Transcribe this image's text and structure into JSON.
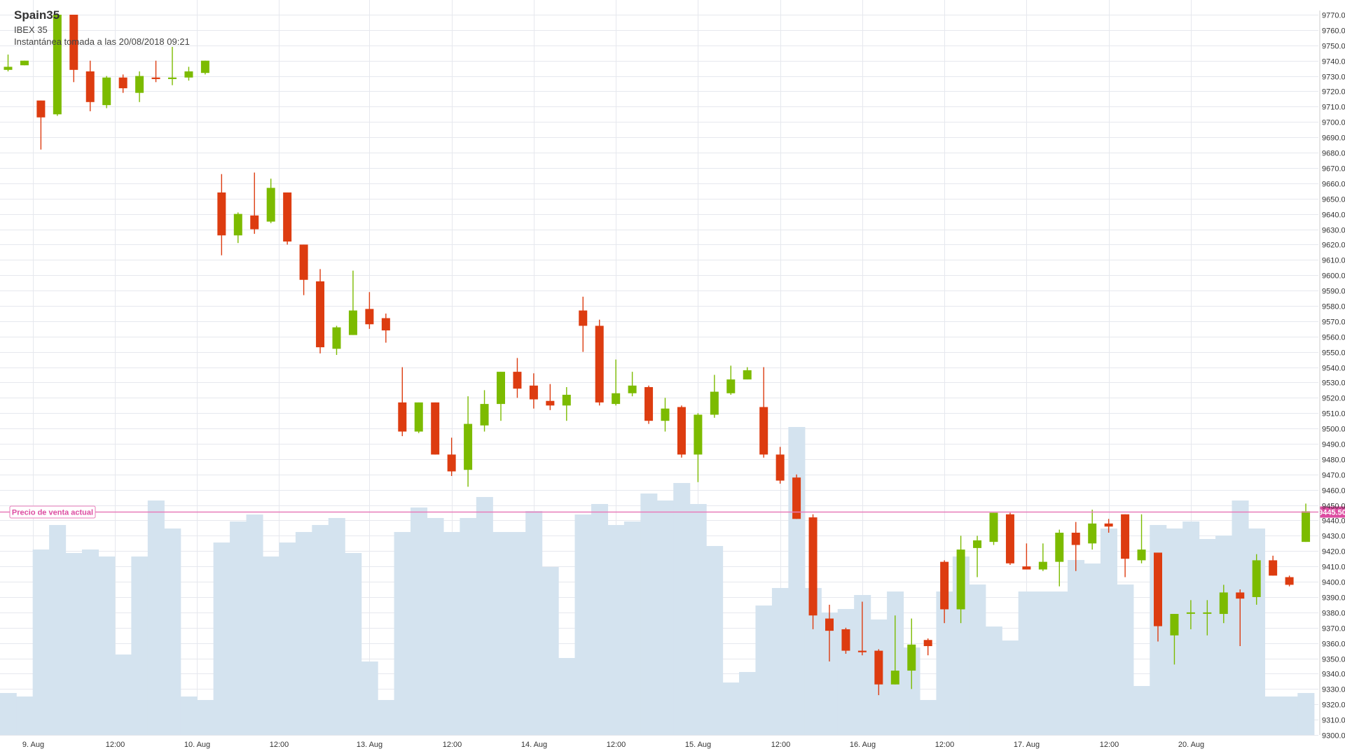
{
  "header": {
    "title": "Spain35",
    "subtitle": "IBEX 35",
    "snapshot": "Instantánea tomada a las 20/08/2018 09:21"
  },
  "colors": {
    "up": "#7cbb00",
    "down": "#dd3c10",
    "volume": "#d4e3ef",
    "grid": "#e6e8ee",
    "price_line": "#e87bb9",
    "price_badge": "#dd4ca1"
  },
  "price_line": {
    "label": "Precio de venta actual",
    "value": 9445.5,
    "value_label": "9445.50"
  },
  "chart_data": {
    "type": "candlestick",
    "x_labels": [
      {
        "label": "9. Aug",
        "index": 1.5
      },
      {
        "label": "12:00",
        "index": 6.5
      },
      {
        "label": "10. Aug",
        "index": 11.5
      },
      {
        "label": "12:00",
        "index": 16.5
      },
      {
        "label": "13. Aug",
        "index": 22.0
      },
      {
        "label": "12:00",
        "index": 27.0
      },
      {
        "label": "14. Aug",
        "index": 32.0
      },
      {
        "label": "12:00",
        "index": 37.0
      },
      {
        "label": "15. Aug",
        "index": 42.0
      },
      {
        "label": "12:00",
        "index": 47.0
      },
      {
        "label": "16. Aug",
        "index": 52.0
      },
      {
        "label": "12:00",
        "index": 57.0
      },
      {
        "label": "17. Aug",
        "index": 62.0
      },
      {
        "label": "12:00",
        "index": 67.0
      },
      {
        "label": "20. Aug",
        "index": 72.0
      }
    ],
    "y_axis": {
      "min": 9300,
      "max": 9770,
      "step": 10,
      "decimals": 2
    },
    "volume_range": {
      "min": 0,
      "max": 1
    },
    "candles": [
      {
        "o": 9734,
        "h": 9744,
        "l": 9733,
        "c": 9736,
        "v": 0.12
      },
      {
        "o": 9737,
        "h": 9740,
        "l": 9737,
        "c": 9740,
        "v": 0.11
      },
      {
        "o": 9714,
        "h": 9714,
        "l": 9682,
        "c": 9703,
        "v": 0.53
      },
      {
        "o": 9705,
        "h": 9770,
        "l": 9704,
        "c": 9770,
        "v": 0.6
      },
      {
        "o": 9770,
        "h": 9770,
        "l": 9726,
        "c": 9734,
        "v": 0.52
      },
      {
        "o": 9733,
        "h": 9740,
        "l": 9707,
        "c": 9713,
        "v": 0.53
      },
      {
        "o": 9711,
        "h": 9730,
        "l": 9709,
        "c": 9729,
        "v": 0.51
      },
      {
        "o": 9729,
        "h": 9731,
        "l": 9719,
        "c": 9722,
        "v": 0.23
      },
      {
        "o": 9719,
        "h": 9733,
        "l": 9713,
        "c": 9730,
        "v": 0.51
      },
      {
        "o": 9729,
        "h": 9740,
        "l": 9726,
        "c": 9728,
        "v": 0.67
      },
      {
        "o": 9728,
        "h": 9749,
        "l": 9724,
        "c": 9729,
        "v": 0.59
      },
      {
        "o": 9729,
        "h": 9736,
        "l": 9727,
        "c": 9733,
        "v": 0.11
      },
      {
        "o": 9732,
        "h": 9740,
        "l": 9731,
        "c": 9740,
        "v": 0.1
      },
      {
        "o": 9654,
        "h": 9666,
        "l": 9613,
        "c": 9626,
        "v": 0.55
      },
      {
        "o": 9626,
        "h": 9641,
        "l": 9621,
        "c": 9640,
        "v": 0.61
      },
      {
        "o": 9639,
        "h": 9667,
        "l": 9627,
        "c": 9630,
        "v": 0.63
      },
      {
        "o": 9635,
        "h": 9663,
        "l": 9634,
        "c": 9657,
        "v": 0.51
      },
      {
        "o": 9654,
        "h": 9654,
        "l": 9620,
        "c": 9622,
        "v": 0.55
      },
      {
        "o": 9620,
        "h": 9620,
        "l": 9587,
        "c": 9597,
        "v": 0.58
      },
      {
        "o": 9596,
        "h": 9604,
        "l": 9549,
        "c": 9553,
        "v": 0.6
      },
      {
        "o": 9552,
        "h": 9567,
        "l": 9548,
        "c": 9566,
        "v": 0.62
      },
      {
        "o": 9561,
        "h": 9603,
        "l": 9561,
        "c": 9577,
        "v": 0.52
      },
      {
        "o": 9578,
        "h": 9589,
        "l": 9565,
        "c": 9568,
        "v": 0.21
      },
      {
        "o": 9572,
        "h": 9575,
        "l": 9556,
        "c": 9564,
        "v": 0.1
      },
      {
        "o": 9517,
        "h": 9540,
        "l": 9495,
        "c": 9498,
        "v": 0.58
      },
      {
        "o": 9498,
        "h": 9517,
        "l": 9497,
        "c": 9517,
        "v": 0.65
      },
      {
        "o": 9517,
        "h": 9517,
        "l": 9483,
        "c": 9483,
        "v": 0.62
      },
      {
        "o": 9483,
        "h": 9494,
        "l": 9469,
        "c": 9472,
        "v": 0.58
      },
      {
        "o": 9473,
        "h": 9521,
        "l": 9462,
        "c": 9503,
        "v": 0.62
      },
      {
        "o": 9502,
        "h": 9525,
        "l": 9498,
        "c": 9516,
        "v": 0.68
      },
      {
        "o": 9516,
        "h": 9537,
        "l": 9505,
        "c": 9537,
        "v": 0.58
      },
      {
        "o": 9537,
        "h": 9546,
        "l": 9520,
        "c": 9526,
        "v": 0.58
      },
      {
        "o": 9528,
        "h": 9536,
        "l": 9513,
        "c": 9519,
        "v": 0.64
      },
      {
        "o": 9518,
        "h": 9529,
        "l": 9512,
        "c": 9515,
        "v": 0.48
      },
      {
        "o": 9515,
        "h": 9527,
        "l": 9505,
        "c": 9522,
        "v": 0.22
      },
      {
        "o": 9577,
        "h": 9586,
        "l": 9550,
        "c": 9567,
        "v": 0.63
      },
      {
        "o": 9567,
        "h": 9571,
        "l": 9515,
        "c": 9517,
        "v": 0.66
      },
      {
        "o": 9516,
        "h": 9545,
        "l": 9515,
        "c": 9523,
        "v": 0.6
      },
      {
        "o": 9523,
        "h": 9537,
        "l": 9521,
        "c": 9528,
        "v": 0.61
      },
      {
        "o": 9527,
        "h": 9528,
        "l": 9503,
        "c": 9505,
        "v": 0.69
      },
      {
        "o": 9505,
        "h": 9520,
        "l": 9498,
        "c": 9513,
        "v": 0.67
      },
      {
        "o": 9514,
        "h": 9515,
        "l": 9481,
        "c": 9483,
        "v": 0.72
      },
      {
        "o": 9483,
        "h": 9510,
        "l": 9465,
        "c": 9509,
        "v": 0.66
      },
      {
        "o": 9509,
        "h": 9535,
        "l": 9507,
        "c": 9524,
        "v": 0.54
      },
      {
        "o": 9523,
        "h": 9541,
        "l": 9522,
        "c": 9532,
        "v": 0.15
      },
      {
        "o": 9532,
        "h": 9540,
        "l": 9532,
        "c": 9538,
        "v": 0.18
      },
      {
        "o": 9514,
        "h": 9540,
        "l": 9481,
        "c": 9483,
        "v": 0.37
      },
      {
        "o": 9483,
        "h": 9488,
        "l": 9464,
        "c": 9466,
        "v": 0.42
      },
      {
        "o": 9468,
        "h": 9470,
        "l": 9441,
        "c": 9441,
        "v": 0.88
      },
      {
        "o": 9442,
        "h": 9444,
        "l": 9369,
        "c": 9378,
        "v": 0.42
      },
      {
        "o": 9376,
        "h": 9385,
        "l": 9348,
        "c": 9368,
        "v": 0.35
      },
      {
        "o": 9369,
        "h": 9370,
        "l": 9353,
        "c": 9355,
        "v": 0.36
      },
      {
        "o": 9355,
        "h": 9387,
        "l": 9352,
        "c": 9354,
        "v": 0.4
      },
      {
        "o": 9355,
        "h": 9356,
        "l": 9326,
        "c": 9333,
        "v": 0.33
      },
      {
        "o": 9333,
        "h": 9378,
        "l": 9333,
        "c": 9342,
        "v": 0.41
      },
      {
        "o": 9342,
        "h": 9376,
        "l": 9330,
        "c": 9359,
        "v": 0.25
      },
      {
        "o": 9362,
        "h": 9363,
        "l": 9352,
        "c": 9358,
        "v": 0.1
      },
      {
        "o": 9413,
        "h": 9414,
        "l": 9373,
        "c": 9382,
        "v": 0.41
      },
      {
        "o": 9382,
        "h": 9430,
        "l": 9373,
        "c": 9421,
        "v": 0.51
      },
      {
        "o": 9422,
        "h": 9430,
        "l": 9403,
        "c": 9427,
        "v": 0.43
      },
      {
        "o": 9426,
        "h": 9445,
        "l": 9424,
        "c": 9445,
        "v": 0.31
      },
      {
        "o": 9444,
        "h": 9445,
        "l": 9411,
        "c": 9412,
        "v": 0.27
      },
      {
        "o": 9410,
        "h": 9425,
        "l": 9408,
        "c": 9408,
        "v": 0.41
      },
      {
        "o": 9408,
        "h": 9425,
        "l": 9407,
        "c": 9413,
        "v": 0.41
      },
      {
        "o": 9413,
        "h": 9434,
        "l": 9397,
        "c": 9432,
        "v": 0.41
      },
      {
        "o": 9432,
        "h": 9439,
        "l": 9407,
        "c": 9424,
        "v": 0.5
      },
      {
        "o": 9425,
        "h": 9447,
        "l": 9421,
        "c": 9438,
        "v": 0.49
      },
      {
        "o": 9438,
        "h": 9441,
        "l": 9432,
        "c": 9436,
        "v": 0.59
      },
      {
        "o": 9444,
        "h": 9444,
        "l": 9403,
        "c": 9415,
        "v": 0.43
      },
      {
        "o": 9414,
        "h": 9444,
        "l": 9412,
        "c": 9421,
        "v": 0.14
      },
      {
        "o": 9419,
        "h": 9419,
        "l": 9361,
        "c": 9371,
        "v": 0.6
      },
      {
        "o": 9365,
        "h": 9379,
        "l": 9346,
        "c": 9379,
        "v": 0.59
      },
      {
        "o": 9380,
        "h": 9388,
        "l": 9369,
        "c": 9380,
        "v": 0.61
      },
      {
        "o": 9380,
        "h": 9388,
        "l": 9365,
        "c": 9380,
        "v": 0.56
      },
      {
        "o": 9379,
        "h": 9398,
        "l": 9373,
        "c": 9393,
        "v": 0.57
      },
      {
        "o": 9393,
        "h": 9395,
        "l": 9358,
        "c": 9389,
        "v": 0.67
      },
      {
        "o": 9390,
        "h": 9418,
        "l": 9385,
        "c": 9414,
        "v": 0.59
      },
      {
        "o": 9414,
        "h": 9417,
        "l": 9404,
        "c": 9404,
        "v": 0.11
      },
      {
        "o": 9403,
        "h": 9404,
        "l": 9397,
        "c": 9398,
        "v": 0.11
      },
      {
        "o": 9426,
        "h": 9451,
        "l": 9426,
        "c": 9446,
        "v": 0.12
      }
    ]
  }
}
